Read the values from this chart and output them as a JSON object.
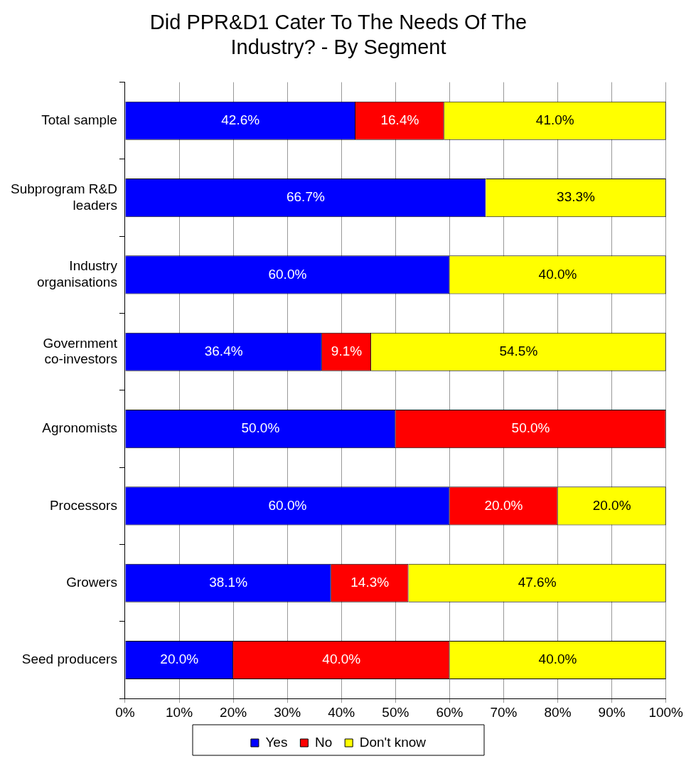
{
  "chart_data": {
    "type": "bar",
    "orientation": "horizontal",
    "stacked": true,
    "title": "Did PPR&D1 Cater To The Needs Of The Industry? - By Segment",
    "categories": [
      "Total sample",
      "Subprogram R&D leaders",
      "Industry organisations",
      "Government co-investors",
      "Agronomists",
      "Processors",
      "Growers",
      "Seed producers"
    ],
    "series": [
      {
        "name": "Yes",
        "color": "#0000ff",
        "values": [
          42.6,
          66.7,
          60.0,
          36.4,
          50.0,
          60.0,
          38.1,
          20.0
        ],
        "value_labels": [
          "42.6%",
          "66.7%",
          "60.0%",
          "36.4%",
          "50.0%",
          "60.0%",
          "38.1%",
          "20.0%"
        ]
      },
      {
        "name": "No",
        "color": "#ff0000",
        "values": [
          16.4,
          null,
          null,
          9.1,
          50.0,
          20.0,
          14.3,
          40.0
        ],
        "value_labels": [
          "16.4%",
          null,
          null,
          "9.1%",
          "50.0%",
          "20.0%",
          "14.3%",
          "40.0%"
        ]
      },
      {
        "name": "Don't know",
        "color": "#ffff00",
        "values": [
          41.0,
          33.3,
          40.0,
          54.5,
          null,
          20.0,
          47.6,
          40.0
        ],
        "value_labels": [
          "41.0%",
          "33.3%",
          "40.0%",
          "54.5%",
          null,
          "20.0%",
          "47.6%",
          "40.0%"
        ]
      }
    ],
    "xlim": [
      0,
      100
    ],
    "xticks": [
      {
        "value": 0,
        "label": "0%"
      },
      {
        "value": 10,
        "label": "10%"
      },
      {
        "value": 20,
        "label": "20%"
      },
      {
        "value": 30,
        "label": "30%"
      },
      {
        "value": 40,
        "label": "40%"
      },
      {
        "value": 50,
        "label": "50%"
      },
      {
        "value": 60,
        "label": "60%"
      },
      {
        "value": 70,
        "label": "70%"
      },
      {
        "value": 80,
        "label": "80%"
      },
      {
        "value": 90,
        "label": "90%"
      },
      {
        "value": 100,
        "label": "100%"
      }
    ],
    "grid": "x",
    "legend": "bottom"
  }
}
